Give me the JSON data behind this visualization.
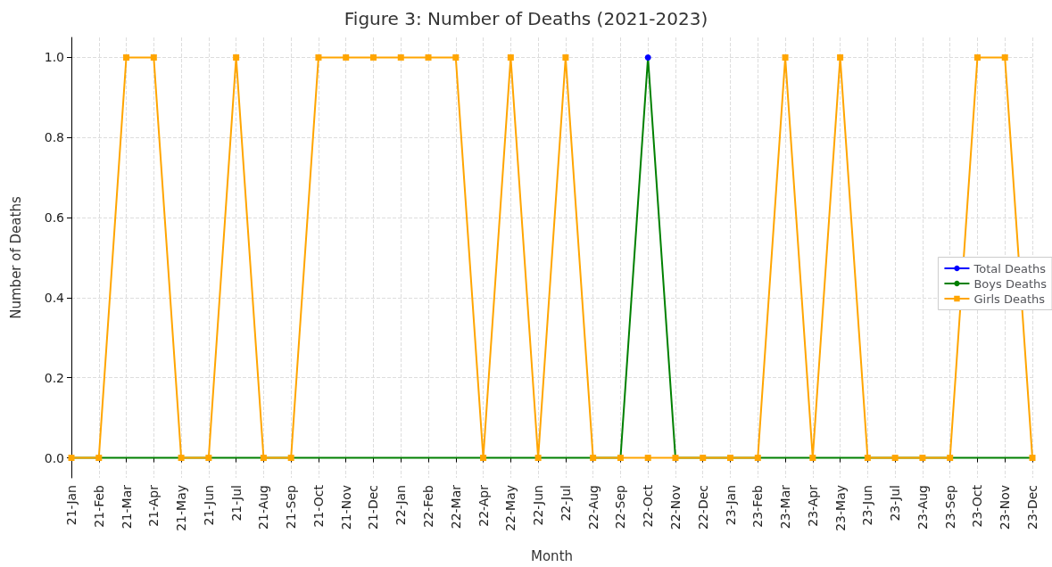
{
  "chart_data": {
    "type": "line",
    "title": "Figure 3: Number of Deaths (2021-2023)",
    "xlabel": "Month",
    "ylabel": "Number of Deaths",
    "categories": [
      "21-Jan",
      "21-Feb",
      "21-Mar",
      "21-Apr",
      "21-May",
      "21-Jun",
      "21-Jul",
      "21-Aug",
      "21-Sep",
      "21-Oct",
      "21-Nov",
      "21-Dec",
      "22-Jan",
      "22-Feb",
      "22-Mar",
      "22-Apr",
      "22-May",
      "22-Jun",
      "22-Jul",
      "22-Aug",
      "22-Sep",
      "22-Oct",
      "22-Nov",
      "22-Dec",
      "23-Jan",
      "23-Feb",
      "23-Mar",
      "23-Apr",
      "23-May",
      "23-Jun",
      "23-Jul",
      "23-Aug",
      "23-Sep",
      "23-Oct",
      "23-Nov",
      "23-Dec"
    ],
    "series": [
      {
        "name": "Total Deaths",
        "color": "#0000ff",
        "marker": "circle",
        "values": [
          null,
          null,
          null,
          null,
          null,
          null,
          null,
          null,
          null,
          null,
          null,
          null,
          null,
          null,
          null,
          null,
          null,
          null,
          null,
          null,
          null,
          1,
          null,
          null,
          null,
          null,
          null,
          null,
          null,
          null,
          null,
          null,
          null,
          null,
          null,
          null
        ]
      },
      {
        "name": "Boys Deaths",
        "color": "#008000",
        "marker": "none",
        "values": [
          0,
          0,
          0,
          0,
          0,
          0,
          0,
          0,
          0,
          0,
          0,
          0,
          0,
          0,
          0,
          0,
          0,
          0,
          0,
          0,
          0,
          1,
          0,
          0,
          0,
          0,
          0,
          0,
          0,
          0,
          0,
          0,
          0,
          0,
          0,
          0
        ]
      },
      {
        "name": "Girls Deaths",
        "color": "#ffa500",
        "marker": "square",
        "values": [
          0,
          0,
          1,
          1,
          0,
          0,
          1,
          0,
          0,
          1,
          1,
          1,
          1,
          1,
          1,
          0,
          1,
          0,
          1,
          0,
          0,
          0,
          0,
          0,
          0,
          0,
          1,
          0,
          1,
          0,
          0,
          0,
          0,
          1,
          1,
          0
        ]
      }
    ],
    "ylim": [
      -0.05,
      1.05
    ],
    "yticks": [
      {
        "value": 0,
        "label": "0.0"
      },
      {
        "value": 0.2,
        "label": "0.2"
      },
      {
        "value": 0.4,
        "label": "0.4"
      },
      {
        "value": 0.6,
        "label": "0.6"
      },
      {
        "value": 0.8,
        "label": "0.8"
      },
      {
        "value": 1,
        "label": "1.0"
      }
    ],
    "grid": true,
    "legend": "right"
  }
}
